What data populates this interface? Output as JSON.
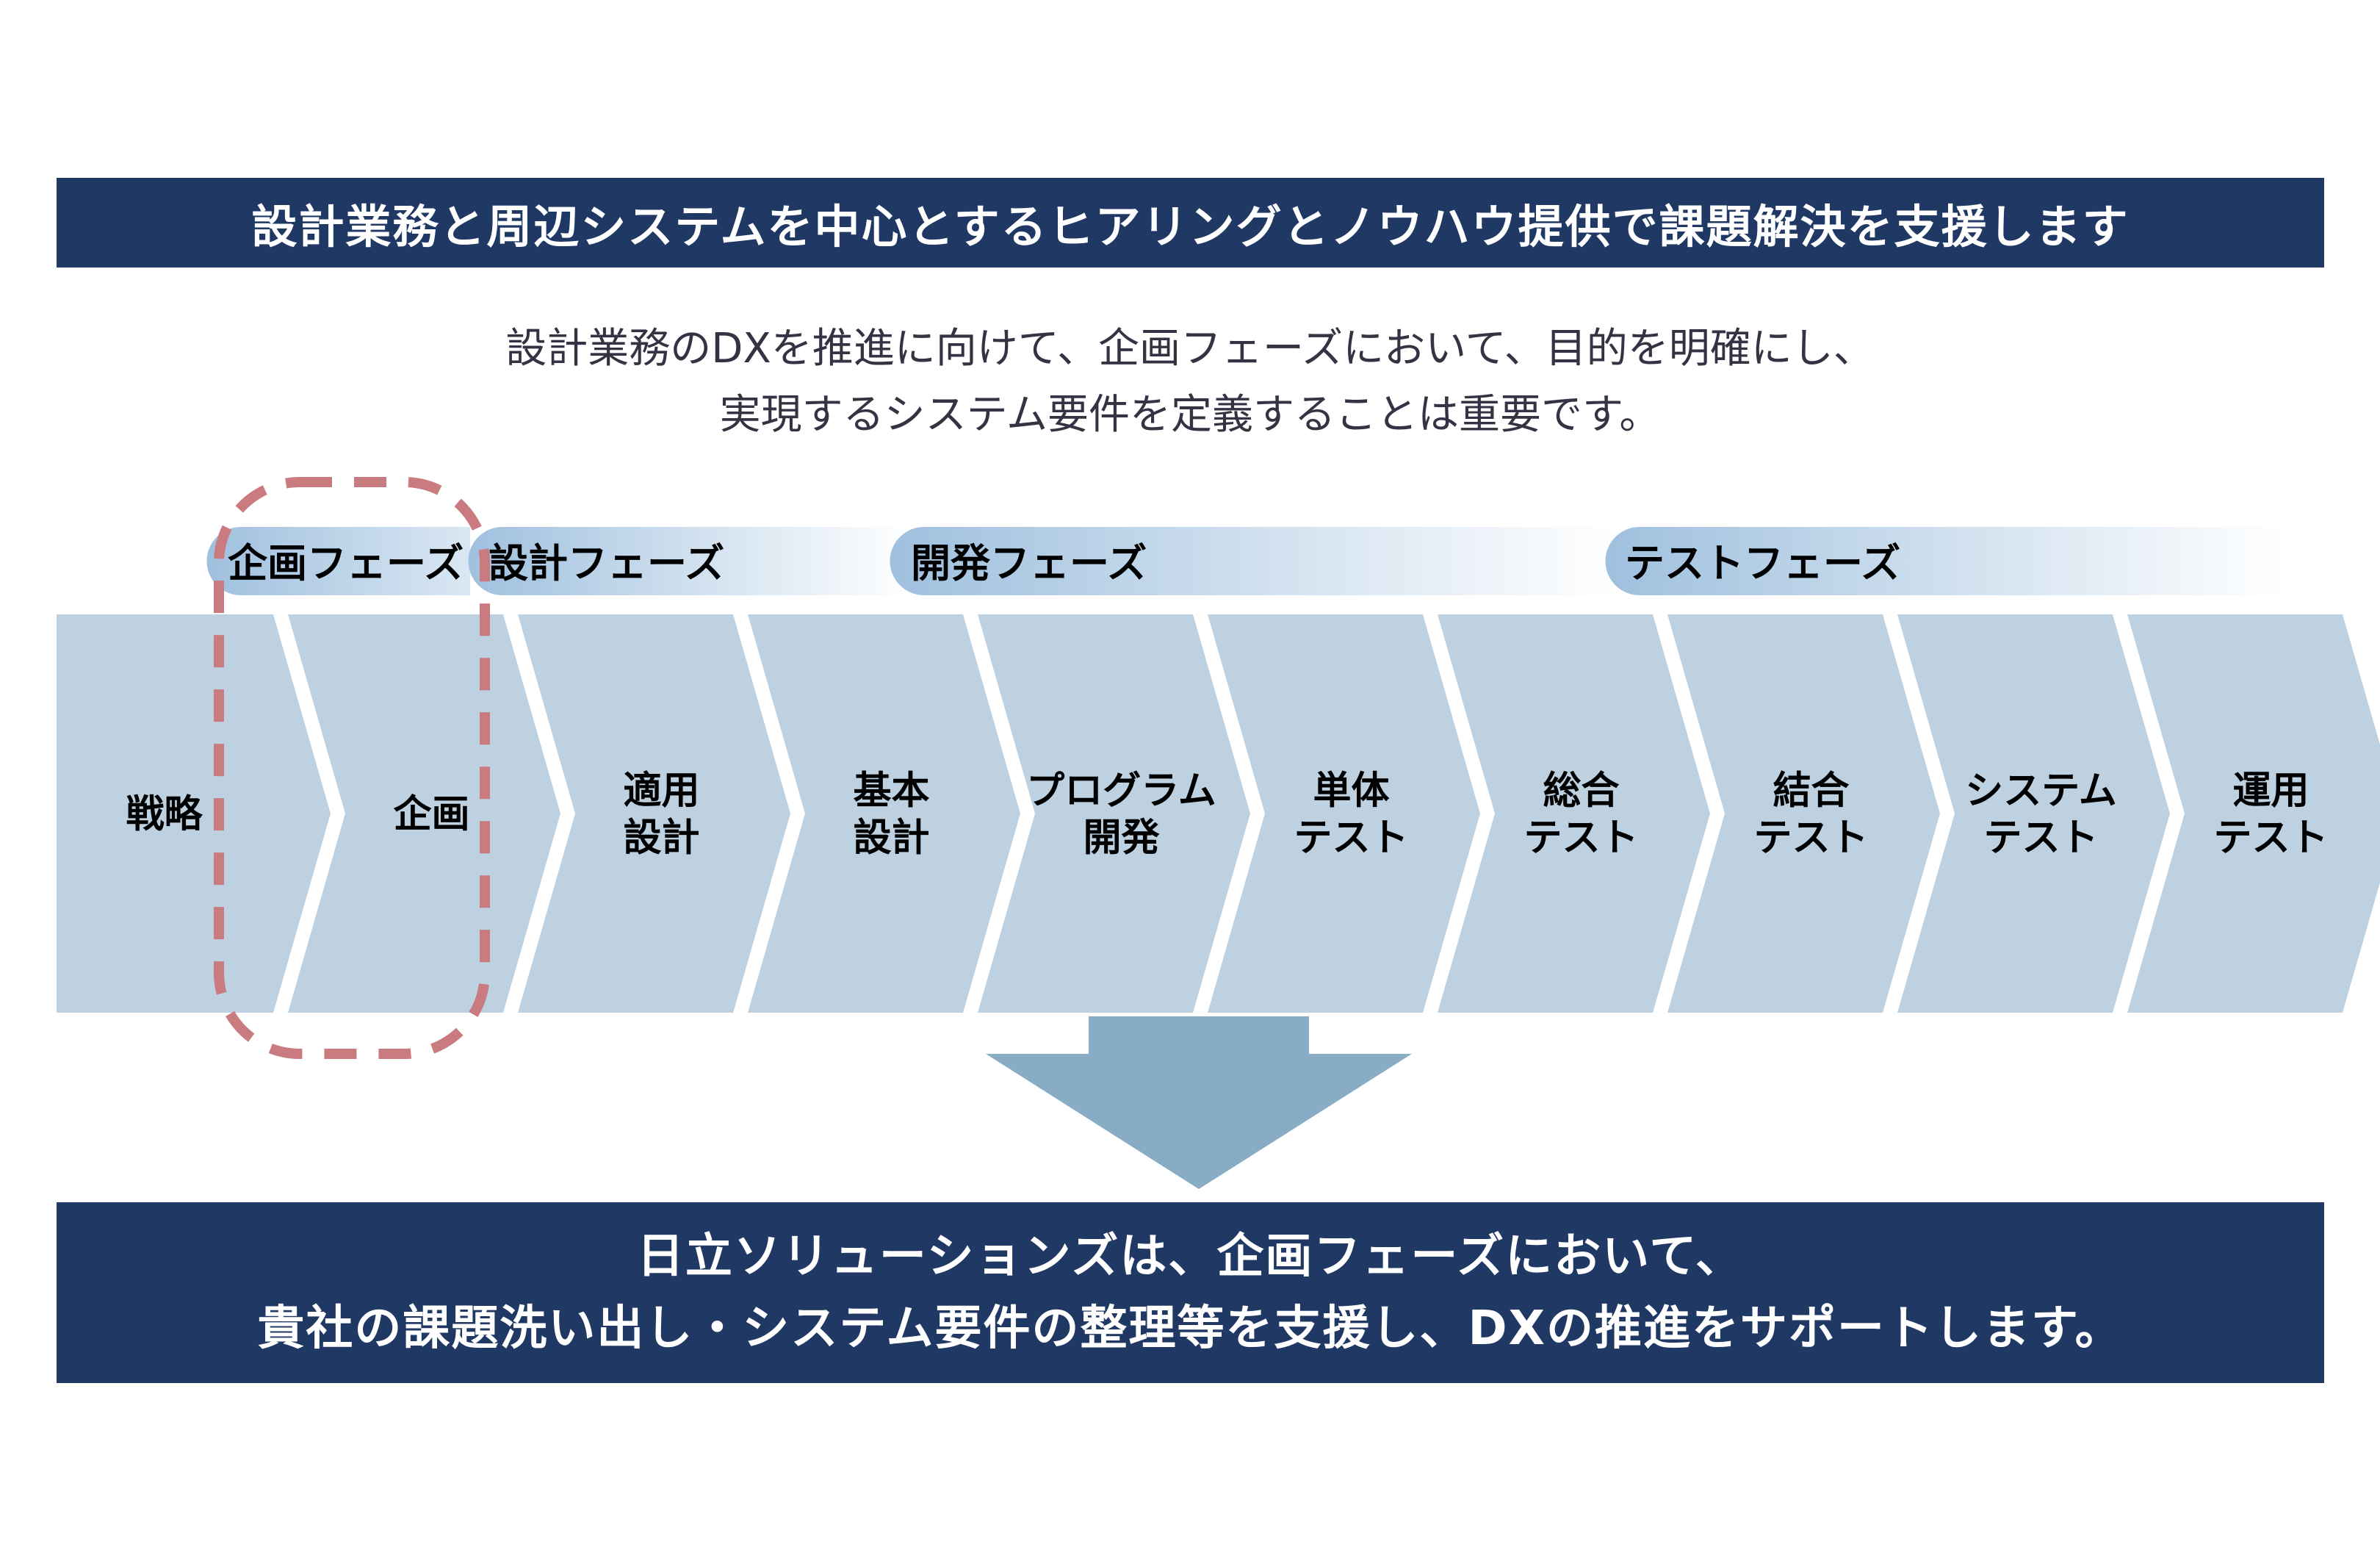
{
  "header": {
    "title": "設計業務と周辺システムを中心とするヒアリングとノウハウ提供で課題解決を支援します"
  },
  "intro": {
    "line1": "設計業務のDXを推進に向けて、企画フェーズにおいて、目的を明確にし、",
    "line2": "実現するシステム要件を定義することは重要です。"
  },
  "phases": [
    {
      "label": "企画フェーズ"
    },
    {
      "label": "設計フェーズ"
    },
    {
      "label": "開発フェーズ"
    },
    {
      "label": "テストフェーズ"
    }
  ],
  "steps": [
    {
      "lines": [
        "戦略"
      ]
    },
    {
      "lines": [
        "企画"
      ]
    },
    {
      "lines": [
        "適用",
        "設計"
      ]
    },
    {
      "lines": [
        "基本",
        "設計"
      ]
    },
    {
      "lines": [
        "プログラム",
        "開発"
      ]
    },
    {
      "lines": [
        "単体",
        "テスト"
      ]
    },
    {
      "lines": [
        "総合",
        "テスト"
      ]
    },
    {
      "lines": [
        "結合",
        "テスト"
      ]
    },
    {
      "lines": [
        "システム",
        "テスト"
      ]
    },
    {
      "lines": [
        "運用",
        "テスト"
      ]
    }
  ],
  "highlight": {
    "step": "企画",
    "color": "#c97b80"
  },
  "footer": {
    "line1": "日立ソリューションズは、企画フェーズにおいて、",
    "line2": "貴社の課題洗い出し・システム要件の整理等を支援し、DXの推進をサポートします。"
  },
  "colors": {
    "banner": "#203864",
    "step_fill": "#bdd1e0",
    "phase_fill": "#9fc0de",
    "arrow": "#88acc5",
    "highlight": "#c97b80"
  }
}
